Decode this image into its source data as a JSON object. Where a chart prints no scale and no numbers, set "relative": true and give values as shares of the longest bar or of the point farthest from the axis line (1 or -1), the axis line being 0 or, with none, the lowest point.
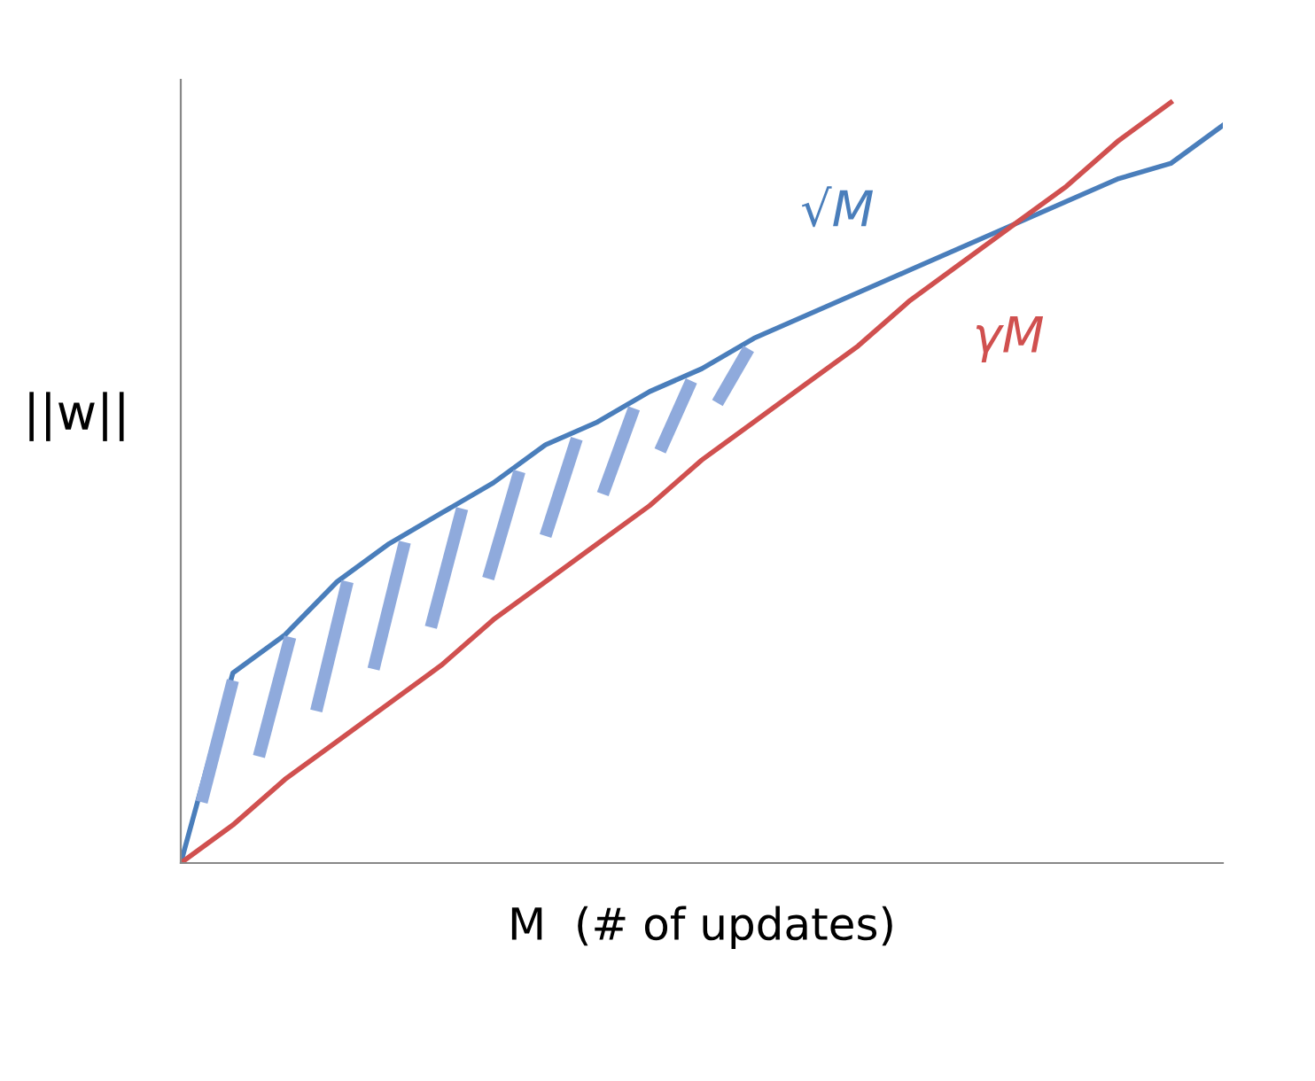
{
  "chart_data": {
    "type": "line",
    "relative": true,
    "xlabel": "M  (# of updates)",
    "ylabel": "||w||",
    "legend": false,
    "marker": "none",
    "line_style": "solid",
    "categories": [
      null,
      null,
      null,
      null,
      null,
      null,
      null,
      null,
      null,
      null,
      null,
      null,
      null,
      null,
      null,
      null,
      null,
      null,
      null,
      null,
      null
    ],
    "series": [
      {
        "name": "√M",
        "color": "#4a7ebb",
        "values": [
          0,
          0.25,
          0.3,
          0.37,
          0.42,
          0.46,
          0.5,
          0.55,
          0.58,
          0.62,
          0.65,
          0.69,
          0.72,
          0.75,
          0.78,
          0.81,
          0.84,
          0.87,
          0.9,
          0.92,
          0.97
        ]
      },
      {
        "name": "γM",
        "color": "#d0504f",
        "values": [
          0,
          0.05,
          0.11,
          0.16,
          0.21,
          0.26,
          0.32,
          0.37,
          0.42,
          0.47,
          0.53,
          0.58,
          0.63,
          0.68,
          0.74,
          0.79,
          0.84,
          0.89,
          0.95,
          1.0,
          null
        ]
      }
    ]
  }
}
